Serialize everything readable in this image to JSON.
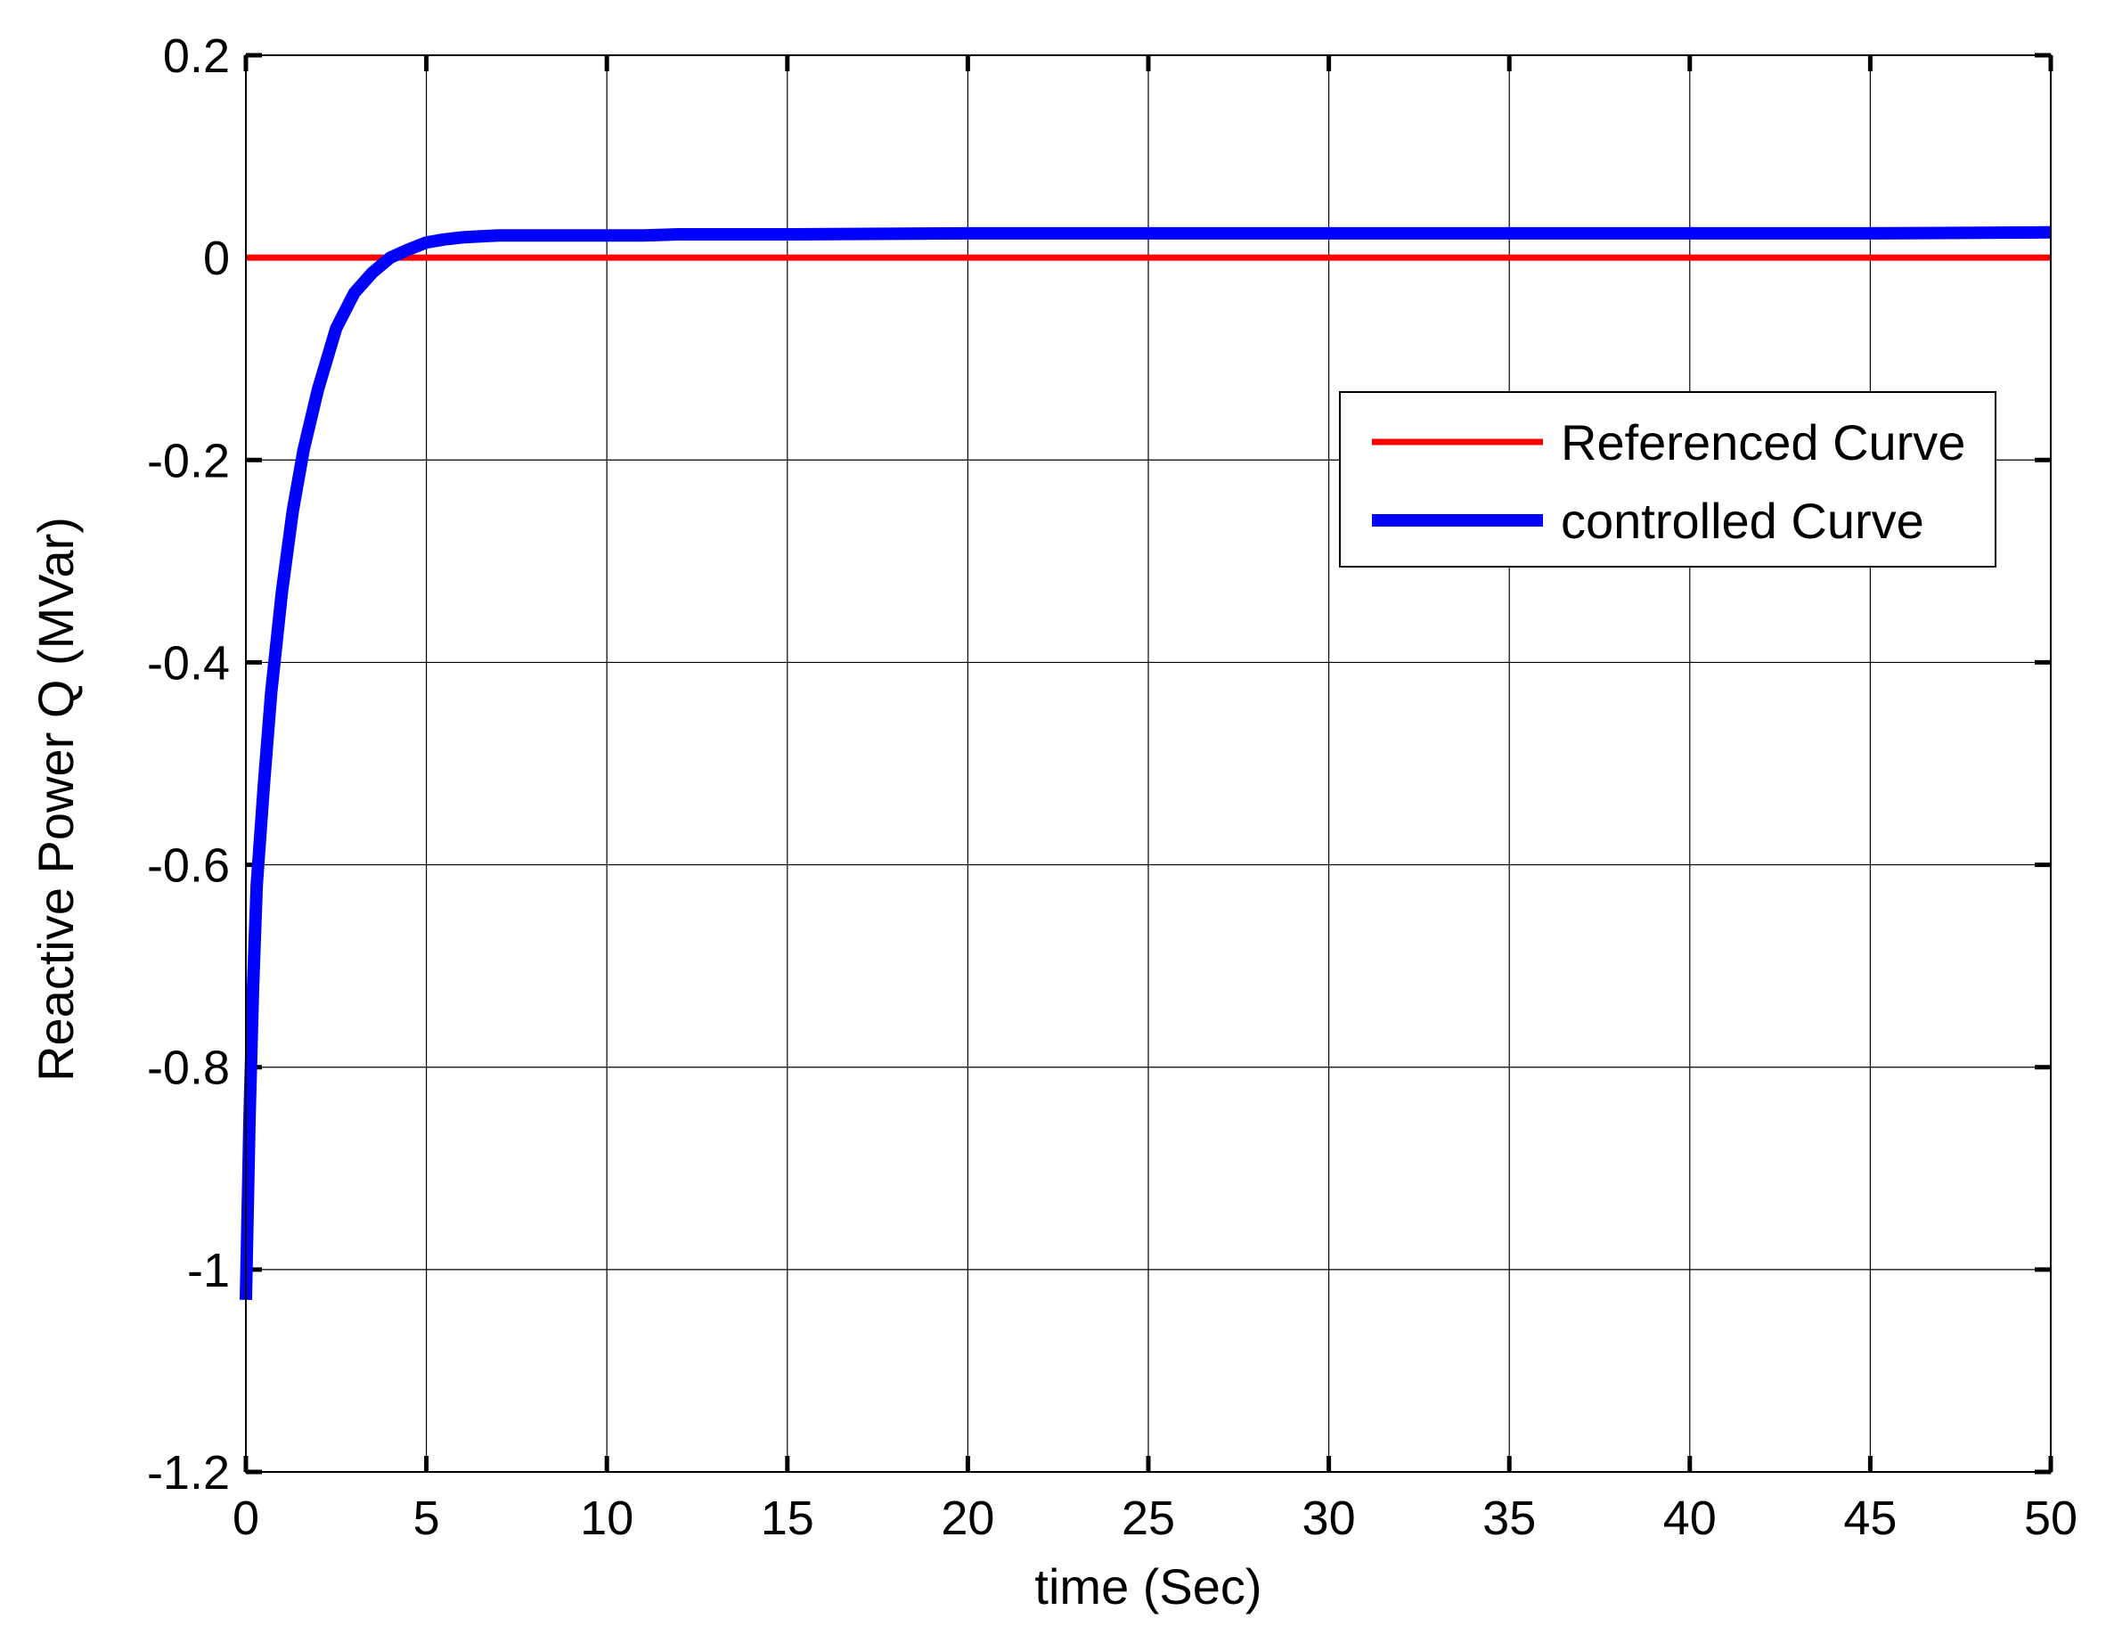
{
  "chart_data": {
    "type": "line",
    "title": "",
    "xlabel": "time (Sec)",
    "ylabel": "Reactive Power Q (MVar)",
    "xlim": [
      0,
      50
    ],
    "ylim": [
      -1.2,
      0.2
    ],
    "xticks": [
      0,
      5,
      10,
      15,
      20,
      25,
      30,
      35,
      40,
      45,
      50
    ],
    "yticks": [
      -1.2,
      -1,
      -0.8,
      -0.6,
      -0.4,
      -0.2,
      0,
      0.2
    ],
    "xtick_labels": [
      "0",
      "5",
      "10",
      "15",
      "20",
      "25",
      "30",
      "35",
      "40",
      "45",
      "50"
    ],
    "ytick_labels": [
      "-1.2",
      "-1",
      "-0.8",
      "-0.6",
      "-0.4",
      "-0.2",
      "0",
      "0.2"
    ],
    "grid": true,
    "legend_position": "upper-right",
    "series": [
      {
        "name": "Referenced Curve",
        "color": "#ff0000",
        "x": [
          0,
          50
        ],
        "y": [
          0,
          0
        ]
      },
      {
        "name": "controlled Curve",
        "color": "#0000ff",
        "x": [
          0,
          0.1,
          0.2,
          0.3,
          0.5,
          0.7,
          1.0,
          1.3,
          1.6,
          2.0,
          2.5,
          3.0,
          3.5,
          4.0,
          4.5,
          5.0,
          5.5,
          6.0,
          6.5,
          7.0,
          8.0,
          9.0,
          10.0,
          11.0,
          12.0,
          15.0,
          20.0,
          25.0,
          30.0,
          35.0,
          40.0,
          45.0,
          50.0
        ],
        "y": [
          -1.03,
          -0.85,
          -0.72,
          -0.62,
          -0.52,
          -0.43,
          -0.33,
          -0.25,
          -0.19,
          -0.13,
          -0.07,
          -0.035,
          -0.015,
          0.0,
          0.008,
          0.015,
          0.018,
          0.02,
          0.021,
          0.022,
          0.022,
          0.022,
          0.022,
          0.022,
          0.023,
          0.023,
          0.024,
          0.024,
          0.024,
          0.024,
          0.024,
          0.024,
          0.025
        ]
      }
    ]
  }
}
